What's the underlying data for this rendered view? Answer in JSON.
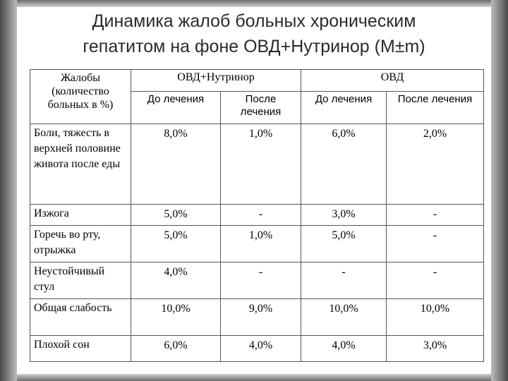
{
  "title": {
    "line1": "Динамика жалоб больных хроническим",
    "line2": "гепатитом на фоне ОВД+Нутринор (M±m)"
  },
  "table": {
    "complaint_header": "Жалобы (количество больных в %)",
    "groups": [
      {
        "label": "ОВД+Нутринор",
        "before": "До лечения",
        "after": "После лечения"
      },
      {
        "label": "ОВД",
        "before": "До лечения",
        "after": "После лечения"
      }
    ],
    "rows": [
      {
        "complaint": "Боли, тяжесть в верхней половине живота после еды",
        "v1": "8,0%",
        "v2": "1,0%",
        "v3": "6,0%",
        "v4": "2,0%"
      },
      {
        "complaint": "Изжога",
        "v1": "5,0%",
        "v2": "-",
        "v3": "3,0%",
        "v4": "-"
      },
      {
        "complaint": "Горечь во рту, отрыжка",
        "v1": "5,0%",
        "v2": "1,0%",
        "v3": "5,0%",
        "v4": "-"
      },
      {
        "complaint": "Неустойчивый стул",
        "v1": "4,0%",
        "v2": "-",
        "v3": "-",
        "v4": "-"
      },
      {
        "complaint": "Общая слабость",
        "v1": "10,0%",
        "v2": "9,0%",
        "v3": "10,0%",
        "v4": "10,0%"
      },
      {
        "complaint": "Плохой сон",
        "v1": "6,0%",
        "v2": "4,0%",
        "v3": "4,0%",
        "v4": "3,0%"
      }
    ]
  }
}
